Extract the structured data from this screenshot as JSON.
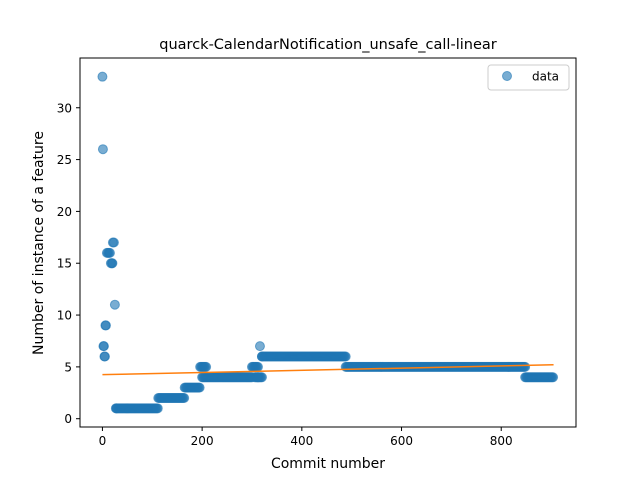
{
  "chart_data": {
    "type": "scatter",
    "title": "quarck-CalendarNotification_unsafe_call-linear",
    "xlabel": "Commit number",
    "ylabel": "Number of instance of a feature",
    "xlim": [
      -45,
      950
    ],
    "ylim": [
      -0.8,
      34.8
    ],
    "xticks": [
      0,
      200,
      400,
      600,
      800
    ],
    "yticks": [
      0,
      5,
      10,
      15,
      20,
      25,
      30
    ],
    "xtick_labels": [
      "0",
      "200",
      "400",
      "600",
      "800"
    ],
    "ytick_labels": [
      "0",
      "5",
      "10",
      "15",
      "20",
      "25",
      "30"
    ],
    "legend": {
      "position": "upper-right",
      "entries": [
        "data"
      ]
    },
    "colors": {
      "scatter": "#1f77b4",
      "fit": "#ff7f0e",
      "frame": "#000000"
    },
    "scatter": {
      "name": "data",
      "points": [
        [
          0,
          33
        ],
        [
          1,
          26
        ],
        [
          2,
          7
        ],
        [
          3,
          7
        ],
        [
          4,
          6
        ],
        [
          5,
          6
        ],
        [
          6,
          9
        ],
        [
          7,
          9
        ],
        [
          9,
          16
        ],
        [
          11,
          16
        ],
        [
          13,
          16
        ],
        [
          15,
          16
        ],
        [
          17,
          15
        ],
        [
          19,
          15
        ],
        [
          20,
          15
        ],
        [
          21,
          17
        ],
        [
          23,
          17
        ],
        [
          25,
          11
        ],
        [
          27,
          1
        ],
        [
          28,
          1
        ]
      ],
      "segments": [
        {
          "x0": 29,
          "x1": 112,
          "y": 1
        },
        {
          "x0": 112,
          "x1": 165,
          "y": 2
        },
        {
          "x0": 165,
          "x1": 196,
          "y": 3
        },
        {
          "x0": 196,
          "x1": 208,
          "y": 5
        },
        {
          "x0": 200,
          "x1": 300,
          "y": 4
        },
        {
          "x0": 300,
          "x1": 312,
          "y": 5
        },
        {
          "x0": 306,
          "x1": 320,
          "y": 4
        },
        {
          "x0": 320,
          "x1": 488,
          "y": 6
        },
        {
          "x0": 488,
          "x1": 848,
          "y": 5
        },
        {
          "x0": 848,
          "x1": 905,
          "y": 4
        }
      ],
      "extra_points": [
        [
          316,
          7
        ],
        [
          320,
          6
        ],
        [
          312,
          4
        ]
      ]
    },
    "fit_line": {
      "x": [
        0,
        905
      ],
      "y": [
        4.25,
        5.2
      ]
    }
  }
}
